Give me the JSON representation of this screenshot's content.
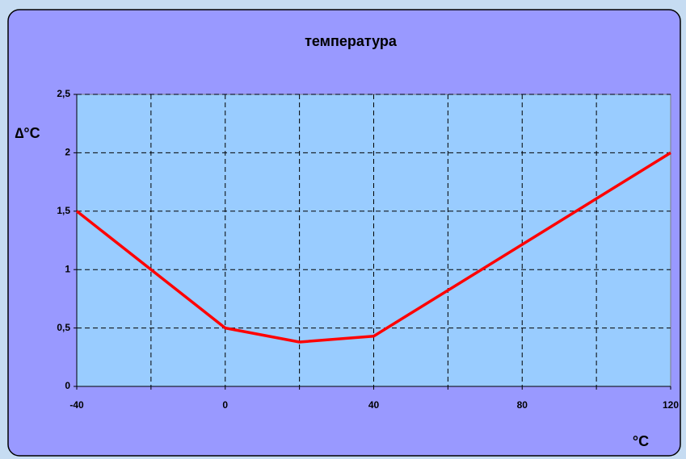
{
  "chart_data": {
    "type": "line",
    "title": "температура",
    "y_label": "∆°C",
    "x_label": "°C",
    "x": [
      -40,
      0,
      20,
      40,
      120
    ],
    "series": [
      {
        "color": "#ff0000",
        "values": [
          1.5,
          0.5,
          0.38,
          0.43,
          2
        ]
      }
    ],
    "xlim": [
      -40,
      120
    ],
    "xticks": [
      -40,
      0,
      40,
      80,
      120
    ],
    "xminor": [
      -20,
      20,
      60,
      100
    ],
    "ylim": [
      0,
      2.5
    ],
    "yticks": [
      0,
      {
        "value": 0.5,
        "label": "0,5"
      },
      1,
      {
        "value": 1.5,
        "label": "1,5"
      },
      2,
      {
        "value": 2.5,
        "label": "2,5"
      }
    ],
    "grid": true
  }
}
